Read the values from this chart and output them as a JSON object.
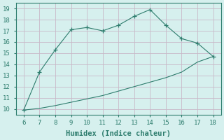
{
  "x_upper": [
    6,
    7,
    8,
    9,
    10,
    11,
    12,
    13,
    14,
    15,
    16,
    17,
    18
  ],
  "y_upper": [
    9.9,
    13.3,
    15.3,
    17.1,
    17.3,
    17.0,
    17.5,
    18.3,
    18.9,
    17.5,
    16.3,
    15.9,
    14.7
  ],
  "x_lower": [
    6,
    7,
    8,
    9,
    10,
    11,
    12,
    13,
    14,
    15,
    16,
    17,
    18
  ],
  "y_lower": [
    9.9,
    10.05,
    10.3,
    10.6,
    10.9,
    11.2,
    11.6,
    12.0,
    12.4,
    12.8,
    13.3,
    14.2,
    14.7
  ],
  "line_color": "#2e7d6e",
  "bg_color": "#d6f0ee",
  "grid_color": "#c8b8c8",
  "xlabel": "Humidex (Indice chaleur)",
  "xlim": [
    5.5,
    18.5
  ],
  "ylim": [
    9.5,
    19.5
  ],
  "xticks": [
    6,
    7,
    8,
    9,
    10,
    11,
    12,
    13,
    14,
    15,
    16,
    17,
    18
  ],
  "yticks": [
    10,
    11,
    12,
    13,
    14,
    15,
    16,
    17,
    18,
    19
  ],
  "tick_fontsize": 6.5,
  "label_fontsize": 7.5
}
